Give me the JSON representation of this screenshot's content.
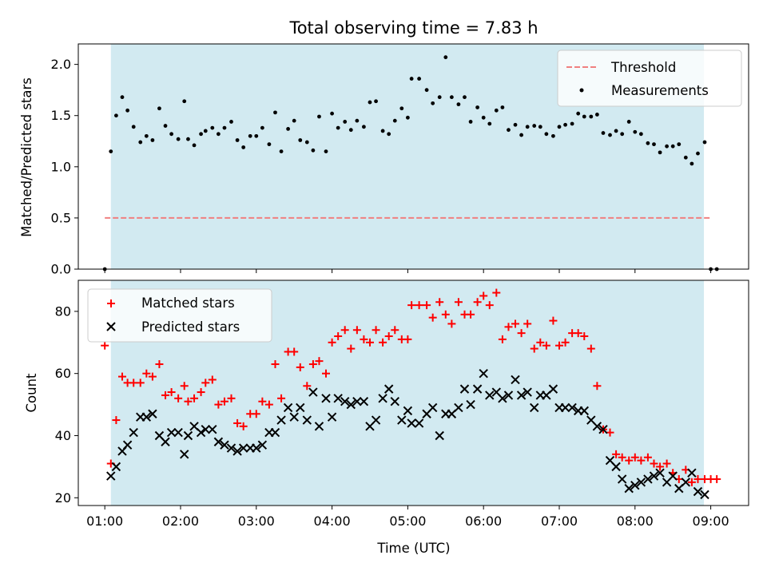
{
  "chart_data": [
    {
      "type": "scatter",
      "title": "Total observing time = 7.83 h",
      "xlabel": "",
      "ylabel": "Matched/Predicted stars",
      "x_unit": "hours UTC",
      "xlim": [
        0.65,
        9.5
      ],
      "ylim": [
        0,
        2.2
      ],
      "yticks": [
        0.0,
        0.5,
        1.0,
        1.5,
        2.0
      ],
      "ytick_labels": [
        "0.0",
        "0.5",
        "1.0",
        "1.5",
        "2.0"
      ],
      "shaded_interval": [
        1.08,
        8.91
      ],
      "shade_color": "#add8e6",
      "legend_position": "upper right",
      "series": [
        {
          "name": "Threshold",
          "style": "dashed-line",
          "color": "#f08080",
          "x": [
            1.0,
            9.0
          ],
          "y": [
            0.5,
            0.5
          ]
        },
        {
          "name": "Measurements",
          "style": "dot",
          "color": "#000000",
          "x": [
            1.0,
            1.08,
            1.15,
            1.23,
            1.3,
            1.38,
            1.47,
            1.55,
            1.63,
            1.72,
            1.8,
            1.88,
            1.97,
            2.05,
            2.1,
            2.18,
            2.27,
            2.33,
            2.42,
            2.5,
            2.58,
            2.67,
            2.75,
            2.83,
            2.92,
            3.0,
            3.08,
            3.17,
            3.25,
            3.33,
            3.42,
            3.5,
            3.58,
            3.67,
            3.75,
            3.83,
            3.92,
            4.0,
            4.08,
            4.17,
            4.25,
            4.33,
            4.42,
            4.5,
            4.58,
            4.67,
            4.75,
            4.83,
            4.92,
            5.0,
            5.05,
            5.15,
            5.25,
            5.33,
            5.42,
            5.5,
            5.58,
            5.67,
            5.75,
            5.83,
            5.92,
            6.0,
            6.08,
            6.17,
            6.25,
            6.33,
            6.42,
            6.5,
            6.58,
            6.67,
            6.75,
            6.83,
            6.92,
            7.0,
            7.08,
            7.17,
            7.25,
            7.33,
            7.42,
            7.5,
            7.58,
            7.67,
            7.75,
            7.83,
            7.92,
            8.0,
            8.08,
            8.17,
            8.25,
            8.33,
            8.42,
            8.5,
            8.58,
            8.67,
            8.75,
            8.83,
            8.92,
            9.0,
            9.08
          ],
          "y": [
            0.0,
            1.15,
            1.5,
            1.68,
            1.55,
            1.39,
            1.24,
            1.3,
            1.26,
            1.57,
            1.4,
            1.32,
            1.27,
            1.64,
            1.27,
            1.21,
            1.32,
            1.35,
            1.38,
            1.32,
            1.38,
            1.44,
            1.26,
            1.19,
            1.3,
            1.3,
            1.38,
            1.22,
            1.53,
            1.15,
            1.37,
            1.45,
            1.26,
            1.24,
            1.16,
            1.49,
            1.15,
            1.52,
            1.38,
            1.44,
            1.36,
            1.45,
            1.39,
            1.63,
            1.64,
            1.35,
            1.32,
            1.45,
            1.57,
            1.48,
            1.86,
            1.86,
            1.75,
            1.62,
            1.68,
            2.07,
            1.68,
            1.61,
            1.68,
            1.44,
            1.58,
            1.48,
            1.42,
            1.55,
            1.58,
            1.36,
            1.41,
            1.31,
            1.39,
            1.4,
            1.39,
            1.32,
            1.3,
            1.39,
            1.41,
            1.42,
            1.52,
            1.49,
            1.49,
            1.51,
            1.33,
            1.31,
            1.35,
            1.32,
            1.44,
            1.34,
            1.32,
            1.23,
            1.22,
            1.14,
            1.2,
            1.2,
            1.22,
            1.09,
            1.03,
            1.13,
            1.24,
            0.0,
            0.0
          ]
        }
      ]
    },
    {
      "type": "scatter",
      "xlabel": "Time (UTC)",
      "ylabel": "Count",
      "x_unit": "hours UTC",
      "xlim": [
        0.65,
        9.5
      ],
      "ylim": [
        17.5,
        90
      ],
      "xticks": [
        1,
        2,
        3,
        4,
        5,
        6,
        7,
        8,
        9
      ],
      "xtick_labels": [
        "01:00",
        "02:00",
        "03:00",
        "04:00",
        "05:00",
        "06:00",
        "07:00",
        "08:00",
        "09:00"
      ],
      "yticks": [
        20,
        40,
        60,
        80
      ],
      "ytick_labels": [
        "20",
        "40",
        "60",
        "80"
      ],
      "shaded_interval": [
        1.08,
        8.91
      ],
      "shade_color": "#add8e6",
      "legend_position": "upper left",
      "series": [
        {
          "name": "Matched stars",
          "marker": "plus",
          "color": "#ff0000",
          "x": [
            1.0,
            1.08,
            1.15,
            1.23,
            1.3,
            1.38,
            1.47,
            1.55,
            1.63,
            1.72,
            1.8,
            1.88,
            1.97,
            2.05,
            2.1,
            2.18,
            2.27,
            2.33,
            2.42,
            2.5,
            2.58,
            2.67,
            2.75,
            2.83,
            2.92,
            3.0,
            3.08,
            3.17,
            3.25,
            3.33,
            3.42,
            3.5,
            3.58,
            3.67,
            3.75,
            3.83,
            3.92,
            4.0,
            4.08,
            4.17,
            4.25,
            4.33,
            4.42,
            4.5,
            4.58,
            4.67,
            4.75,
            4.83,
            4.92,
            5.0,
            5.05,
            5.15,
            5.25,
            5.33,
            5.42,
            5.5,
            5.58,
            5.67,
            5.75,
            5.83,
            5.92,
            6.0,
            6.08,
            6.17,
            6.25,
            6.33,
            6.42,
            6.5,
            6.58,
            6.67,
            6.75,
            6.83,
            6.92,
            7.0,
            7.08,
            7.17,
            7.25,
            7.33,
            7.42,
            7.5,
            7.58,
            7.67,
            7.75,
            7.83,
            7.92,
            8.0,
            8.08,
            8.17,
            8.25,
            8.33,
            8.42,
            8.5,
            8.58,
            8.67,
            8.75,
            8.83,
            8.92,
            9.0,
            9.08
          ],
          "y": [
            69,
            31,
            45,
            59,
            57,
            57,
            57,
            60,
            59,
            63,
            53,
            54,
            52,
            56,
            51,
            52,
            54,
            57,
            58,
            50,
            51,
            52,
            44,
            43,
            47,
            47,
            51,
            50,
            63,
            52,
            67,
            67,
            62,
            56,
            63,
            64,
            60,
            70,
            72,
            74,
            68,
            74,
            71,
            70,
            74,
            70,
            72,
            74,
            71,
            71,
            82,
            82,
            82,
            78,
            83,
            79,
            76,
            83,
            79,
            79,
            83,
            85,
            82,
            86,
            71,
            75,
            76,
            73,
            76,
            68,
            70,
            69,
            77,
            69,
            70,
            73,
            73,
            72,
            68,
            56,
            42,
            41,
            34,
            33,
            32,
            33,
            32,
            33,
            31,
            30,
            31,
            28,
            26,
            29,
            25,
            26,
            26,
            26,
            26
          ]
        },
        {
          "name": "Predicted stars",
          "marker": "x",
          "color": "#000000",
          "x": [
            1.08,
            1.15,
            1.23,
            1.3,
            1.38,
            1.47,
            1.55,
            1.63,
            1.72,
            1.8,
            1.88,
            1.97,
            2.05,
            2.1,
            2.18,
            2.27,
            2.33,
            2.42,
            2.5,
            2.58,
            2.67,
            2.75,
            2.83,
            2.92,
            3.0,
            3.08,
            3.17,
            3.25,
            3.33,
            3.42,
            3.5,
            3.58,
            3.67,
            3.75,
            3.83,
            3.92,
            4.0,
            4.08,
            4.17,
            4.25,
            4.33,
            4.42,
            4.5,
            4.58,
            4.67,
            4.75,
            4.83,
            4.92,
            5.0,
            5.05,
            5.15,
            5.25,
            5.33,
            5.42,
            5.5,
            5.58,
            5.67,
            5.75,
            5.83,
            5.92,
            6.0,
            6.08,
            6.17,
            6.25,
            6.33,
            6.42,
            6.5,
            6.58,
            6.67,
            6.75,
            6.83,
            6.92,
            7.0,
            7.08,
            7.17,
            7.25,
            7.33,
            7.42,
            7.5,
            7.58,
            7.67,
            7.75,
            7.83,
            7.92,
            8.0,
            8.08,
            8.17,
            8.25,
            8.33,
            8.42,
            8.5,
            8.58,
            8.67,
            8.75,
            8.83,
            8.92
          ],
          "y": [
            27,
            30,
            35,
            37,
            41,
            46,
            46,
            47,
            40,
            38,
            41,
            41,
            34,
            40,
            43,
            41,
            42,
            42,
            38,
            37,
            36,
            35,
            36,
            36,
            36,
            37,
            41,
            41,
            45,
            49,
            46,
            49,
            45,
            54,
            43,
            52,
            46,
            52,
            51,
            50,
            51,
            51,
            43,
            45,
            52,
            55,
            51,
            45,
            48,
            44,
            44,
            47,
            49,
            40,
            47,
            47,
            49,
            55,
            50,
            55,
            60,
            53,
            54,
            52,
            53,
            58,
            53,
            54,
            49,
            53,
            53,
            55,
            49,
            49,
            49,
            48,
            48,
            45,
            43,
            42,
            32,
            30,
            26,
            23,
            24,
            25,
            26,
            27,
            28,
            25,
            27,
            23,
            25,
            28,
            22,
            21
          ]
        }
      ]
    }
  ]
}
